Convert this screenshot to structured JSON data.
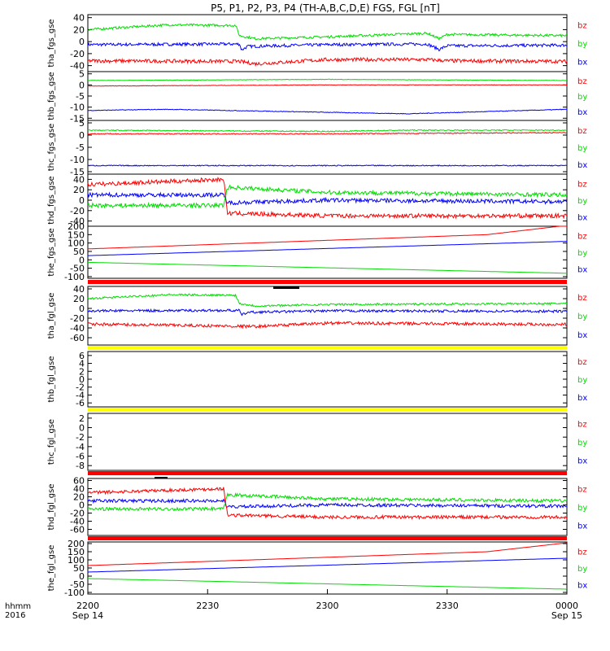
{
  "title": "P5, P1, P2, P3, P4 (TH-A,B,C,D,E) FGS, FGL [nT]",
  "time_axis": {
    "row1_label": "hhmm",
    "row2_label": "2016",
    "ticks": [
      {
        "t": 0,
        "label": "2200",
        "sub": "Sep 14"
      },
      {
        "t": 30,
        "label": "2230",
        "sub": ""
      },
      {
        "t": 60,
        "label": "2300",
        "sub": ""
      },
      {
        "t": 90,
        "label": "2330",
        "sub": ""
      },
      {
        "t": 120,
        "label": "0000",
        "sub": "Sep 15"
      }
    ]
  },
  "colors": {
    "bx": "#0000ff",
    "by": "#00dd00",
    "bz": "#ff0000",
    "yellow_bar": "#ffff00",
    "red_bar": "#ff0000"
  },
  "chart_data": [
    {
      "id": "tha_fgs",
      "type": "line",
      "ylabel": "tha_fgs_gse",
      "ylim": [
        -50,
        45
      ],
      "yticks": [
        -40,
        -20,
        0,
        20,
        40
      ],
      "legend": [
        "bz",
        "by",
        "bx"
      ],
      "series": [
        {
          "name": "bx",
          "kind": "t",
          "mean": -5,
          "noise": 2.5,
          "ev": [
            [
              0,
              -5
            ],
            [
              38,
              -4
            ],
            [
              38.5,
              -14
            ],
            [
              40,
              -8
            ],
            [
              60,
              -5
            ],
            [
              85,
              -4
            ],
            [
              88,
              -13
            ],
            [
              90,
              -7
            ],
            [
              120,
              -6
            ]
          ]
        },
        {
          "name": "by",
          "kind": "t",
          "mean": 20,
          "noise": 2,
          "ev": [
            [
              0,
              20
            ],
            [
              20,
              28
            ],
            [
              37,
              27
            ],
            [
              38,
              10
            ],
            [
              42,
              5
            ],
            [
              60,
              8
            ],
            [
              85,
              14
            ],
            [
              88,
              5
            ],
            [
              90,
              12
            ],
            [
              120,
              10
            ]
          ]
        },
        {
          "name": "bz",
          "kind": "t",
          "mean": -33,
          "noise": 3,
          "ev": [
            [
              0,
              -32
            ],
            [
              38,
              -33
            ],
            [
              42,
              -37
            ],
            [
              60,
              -30
            ],
            [
              85,
              -30
            ],
            [
              90,
              -32
            ],
            [
              120,
              -33
            ]
          ]
        }
      ]
    },
    {
      "id": "thb_fgs",
      "type": "line",
      "ylabel": "thb_fgs_gse",
      "ylim": [
        -16,
        6
      ],
      "yticks": [
        -15,
        -10,
        -5,
        0,
        5
      ],
      "legend": [
        "bz",
        "by",
        "bx"
      ],
      "series": [
        {
          "name": "bx",
          "kind": "t",
          "noise": 0.15,
          "ev": [
            [
              0,
              -11.5
            ],
            [
              20,
              -11
            ],
            [
              50,
              -12
            ],
            [
              80,
              -13
            ],
            [
              100,
              -12
            ],
            [
              120,
              -11
            ]
          ]
        },
        {
          "name": "by",
          "kind": "t",
          "noise": 0.1,
          "ev": [
            [
              0,
              2
            ],
            [
              60,
              2.5
            ],
            [
              120,
              2
            ]
          ]
        },
        {
          "name": "bz",
          "kind": "t",
          "noise": 0.1,
          "ev": [
            [
              0,
              -0.5
            ],
            [
              60,
              0
            ],
            [
              120,
              0
            ]
          ]
        }
      ]
    },
    {
      "id": "thc_fgs",
      "type": "line",
      "ylabel": "thc_fgs_gse",
      "ylim": [
        -16,
        6
      ],
      "yticks": [
        -15,
        -10,
        -5,
        0,
        5
      ],
      "legend": [
        "bz",
        "by",
        "bx"
      ],
      "series": [
        {
          "name": "bx",
          "kind": "t",
          "noise": 0.2,
          "ev": [
            [
              0,
              -12.5
            ],
            [
              60,
              -12.5
            ],
            [
              120,
              -12.5
            ]
          ]
        },
        {
          "name": "by",
          "kind": "t",
          "noise": 0.2,
          "ev": [
            [
              0,
              2
            ],
            [
              60,
              1.5
            ],
            [
              80,
              2
            ],
            [
              120,
              2
            ]
          ]
        },
        {
          "name": "bz",
          "kind": "t",
          "noise": 0.2,
          "ev": [
            [
              0,
              0.5
            ],
            [
              60,
              0.5
            ],
            [
              120,
              1
            ]
          ]
        }
      ]
    },
    {
      "id": "thd_fgs",
      "type": "line",
      "ylabel": "thd_fgs_gse",
      "ylim": [
        -50,
        50
      ],
      "yticks": [
        -40,
        -20,
        0,
        20,
        40
      ],
      "legend": [
        "bz",
        "by",
        "bx"
      ],
      "series": [
        {
          "name": "bx",
          "kind": "t",
          "noise": 4,
          "ev": [
            [
              0,
              10
            ],
            [
              34,
              10
            ],
            [
              35,
              -5
            ],
            [
              60,
              0
            ],
            [
              120,
              -3
            ]
          ]
        },
        {
          "name": "by",
          "kind": "t",
          "noise": 4,
          "ev": [
            [
              0,
              -10
            ],
            [
              34,
              -10
            ],
            [
              35,
              25
            ],
            [
              60,
              15
            ],
            [
              120,
              10
            ]
          ]
        },
        {
          "name": "bz",
          "kind": "t",
          "noise": 4,
          "ev": [
            [
              0,
              30
            ],
            [
              34,
              40
            ],
            [
              35,
              -25
            ],
            [
              60,
              -30
            ],
            [
              120,
              -30
            ]
          ]
        }
      ]
    },
    {
      "id": "the_fgs",
      "type": "line",
      "ylabel": "the_fgs_gse",
      "ylim": [
        -110,
        200
      ],
      "yticks": [
        -100,
        -50,
        0,
        50,
        100,
        150,
        200
      ],
      "legend": [
        "bz",
        "by",
        "bx"
      ],
      "series": [
        {
          "name": "bx",
          "kind": "t",
          "noise": 0,
          "ev": [
            [
              0,
              25
            ],
            [
              120,
              110
            ]
          ]
        },
        {
          "name": "by",
          "kind": "t",
          "noise": 0,
          "ev": [
            [
              0,
              -15
            ],
            [
              120,
              -80
            ]
          ]
        },
        {
          "name": "bz",
          "kind": "t",
          "noise": 0,
          "ev": [
            [
              0,
              65
            ],
            [
              100,
              150
            ],
            [
              120,
              205
            ]
          ]
        }
      ]
    },
    {
      "id": "tha_fgl",
      "type": "line",
      "ylabel": "tha_fgl_gse",
      "ylim": [
        -75,
        45
      ],
      "yticks": [
        -60,
        -40,
        -20,
        0,
        20,
        40
      ],
      "legend": [
        "bz",
        "by",
        "bx"
      ],
      "series": [
        {
          "name": "bx",
          "kind": "t",
          "noise": 2.5,
          "ev": [
            [
              0,
              -5
            ],
            [
              38,
              -4
            ],
            [
              38.5,
              -14
            ],
            [
              40,
              -8
            ],
            [
              60,
              -5
            ],
            [
              120,
              -6
            ]
          ]
        },
        {
          "name": "by",
          "kind": "t",
          "noise": 2,
          "ev": [
            [
              0,
              20
            ],
            [
              20,
              28
            ],
            [
              37,
              27
            ],
            [
              38,
              10
            ],
            [
              42,
              5
            ],
            [
              60,
              8
            ],
            [
              120,
              10
            ]
          ]
        },
        {
          "name": "bz",
          "kind": "t",
          "noise": 3,
          "ev": [
            [
              0,
              -32
            ],
            [
              42,
              -37
            ],
            [
              60,
              -30
            ],
            [
              120,
              -33
            ]
          ]
        }
      ]
    },
    {
      "id": "thb_fgl",
      "type": "line",
      "ylabel": "thb_fgl_gse",
      "ylim": [
        -7,
        7
      ],
      "yticks": [
        -6,
        -4,
        -2,
        0,
        2,
        4,
        6
      ],
      "legend": [
        "bz",
        "by",
        "bx"
      ],
      "series": []
    },
    {
      "id": "thc_fgl",
      "type": "line",
      "ylabel": "thc_fgl_gse",
      "ylim": [
        -9,
        3
      ],
      "yticks": [
        -8,
        -6,
        -4,
        -2,
        0,
        2
      ],
      "legend": [
        "bz",
        "by",
        "bx"
      ],
      "series": []
    },
    {
      "id": "thd_fgl",
      "type": "line",
      "ylabel": "thd_fgl_gse",
      "ylim": [
        -75,
        65
      ],
      "yticks": [
        -60,
        -40,
        -20,
        0,
        20,
        40,
        60
      ],
      "legend": [
        "bz",
        "by",
        "bx"
      ],
      "series": [
        {
          "name": "bx",
          "kind": "t",
          "noise": 4,
          "ev": [
            [
              0,
              10
            ],
            [
              34,
              10
            ],
            [
              35,
              -5
            ],
            [
              60,
              0
            ],
            [
              120,
              -3
            ]
          ]
        },
        {
          "name": "by",
          "kind": "t",
          "noise": 4,
          "ev": [
            [
              0,
              -10
            ],
            [
              34,
              -10
            ],
            [
              35,
              25
            ],
            [
              60,
              15
            ],
            [
              120,
              10
            ]
          ]
        },
        {
          "name": "bz",
          "kind": "t",
          "noise": 4,
          "ev": [
            [
              0,
              30
            ],
            [
              34,
              40
            ],
            [
              35,
              -25
            ],
            [
              60,
              -30
            ],
            [
              120,
              -30
            ]
          ]
        }
      ]
    },
    {
      "id": "the_fgl",
      "type": "line",
      "ylabel": "the_fgl_gse",
      "ylim": [
        -110,
        210
      ],
      "yticks": [
        -100,
        -50,
        0,
        50,
        100,
        150,
        200
      ],
      "legend": [
        "bz",
        "by",
        "bx"
      ],
      "series": [
        {
          "name": "bx",
          "kind": "t",
          "noise": 0,
          "ev": [
            [
              0,
              25
            ],
            [
              120,
              110
            ]
          ]
        },
        {
          "name": "by",
          "kind": "t",
          "noise": 0,
          "ev": [
            [
              0,
              -15
            ],
            [
              120,
              -80
            ]
          ]
        },
        {
          "name": "bz",
          "kind": "t",
          "noise": 0,
          "ev": [
            [
              0,
              65
            ],
            [
              100,
              150
            ],
            [
              120,
              205
            ]
          ]
        }
      ]
    }
  ]
}
